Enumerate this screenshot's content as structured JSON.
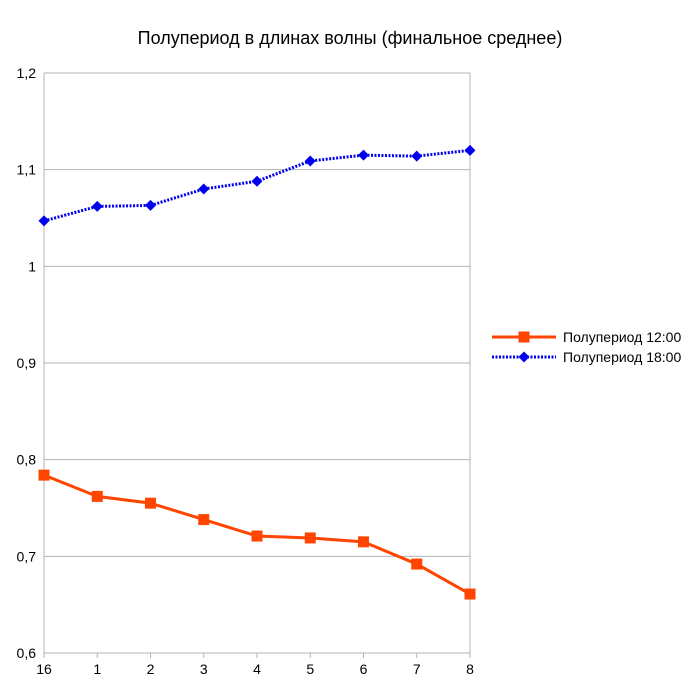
{
  "chart_data": {
    "type": "line",
    "title": "Полупериод в длинах волны (финальное среднее)",
    "xlabel": "",
    "ylabel": "",
    "categories": [
      "16",
      "1",
      "2",
      "3",
      "4",
      "5",
      "6",
      "7",
      "8"
    ],
    "ylim": [
      0.6,
      1.2
    ],
    "yticks": [
      0.6,
      0.7,
      0.8,
      0.9,
      1.0,
      1.1,
      1.2
    ],
    "ytick_labels": [
      "0,6",
      "0,7",
      "0,8",
      "0,9",
      "1",
      "1,1",
      "1,2"
    ],
    "grid": true,
    "legend_position": "right",
    "series": [
      {
        "name": "Полупериод 12:00",
        "color": "#ff4500",
        "marker": "square",
        "line_style": "solid",
        "values": [
          0.784,
          0.762,
          0.755,
          0.738,
          0.721,
          0.719,
          0.715,
          0.692,
          0.661
        ]
      },
      {
        "name": "Полупериод 18:00",
        "color": "#0000ee",
        "marker": "diamond",
        "line_style": "dotted",
        "values": [
          1.047,
          1.062,
          1.063,
          1.08,
          1.088,
          1.109,
          1.115,
          1.114,
          1.12
        ]
      }
    ]
  }
}
